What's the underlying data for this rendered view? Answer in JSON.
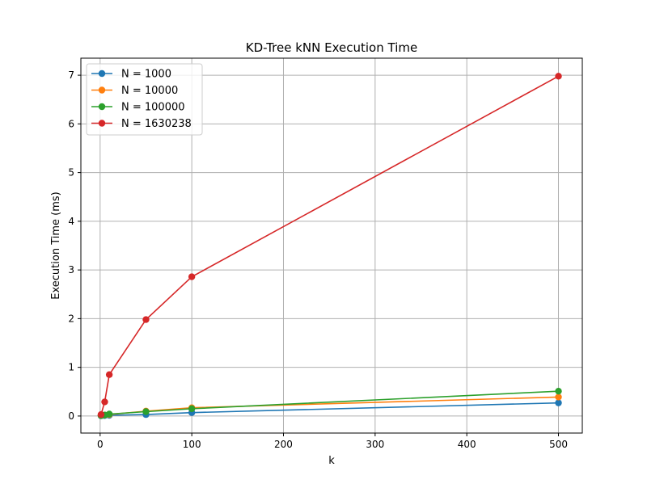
{
  "chart_data": {
    "type": "line",
    "title": "KD-Tree kNN Execution Time",
    "xlabel": "k",
    "ylabel": "Execution Time (ms)",
    "xlim": [
      -21,
      526
    ],
    "ylim": [
      -0.35,
      7.35
    ],
    "x_ticks": [
      0,
      100,
      200,
      300,
      400,
      500
    ],
    "y_ticks": [
      0,
      1,
      2,
      3,
      4,
      5,
      6,
      7
    ],
    "grid": true,
    "legend_position": "upper-left",
    "x": [
      1,
      5,
      10,
      50,
      100,
      500
    ],
    "series": [
      {
        "name": "N = 1000",
        "color": "#1f77b4",
        "marker": "circle",
        "values": [
          0.005,
          0.01,
          0.015,
          0.03,
          0.07,
          0.27
        ]
      },
      {
        "name": "N = 10000",
        "color": "#ff7f0e",
        "marker": "circle",
        "values": [
          0.01,
          0.02,
          0.03,
          0.1,
          0.17,
          0.39
        ]
      },
      {
        "name": "N = 100000",
        "color": "#2ca02c",
        "marker": "circle",
        "values": [
          0.01,
          0.02,
          0.04,
          0.09,
          0.15,
          0.51
        ]
      },
      {
        "name": "N = 1630238",
        "color": "#d62728",
        "marker": "circle",
        "values": [
          0.03,
          0.29,
          0.85,
          1.98,
          2.86,
          6.98
        ]
      }
    ]
  }
}
